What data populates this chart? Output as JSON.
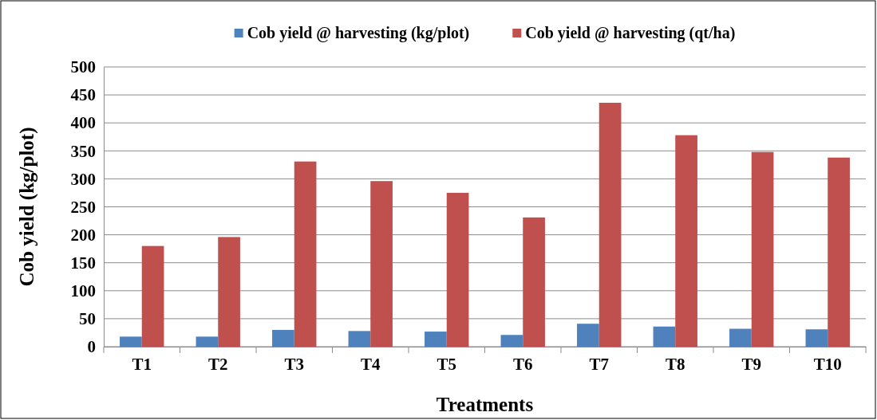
{
  "chart_data": {
    "type": "bar",
    "xlabel": "Treatments",
    "ylabel": "Cob yield (kg/plot)",
    "categories": [
      "T1",
      "T2",
      "T3",
      "T4",
      "T5",
      "T6",
      "T7",
      "T8",
      "T9",
      "T10"
    ],
    "series": [
      {
        "name": "Cob yield @ harvesting (kg/plot)",
        "color": "#4f81bd",
        "values": [
          18,
          18,
          30,
          28,
          27,
          21,
          41,
          36,
          32,
          31
        ]
      },
      {
        "name": "Cob yield @ harvesting (qt/ha)",
        "color": "#c0504d",
        "values": [
          180,
          196,
          331,
          296,
          275,
          231,
          436,
          378,
          348,
          338
        ]
      }
    ],
    "ylim": [
      0,
      500
    ],
    "yticks": [
      0,
      50,
      100,
      150,
      200,
      250,
      300,
      350,
      400,
      450,
      500
    ],
    "grid": "y",
    "legend": "top"
  }
}
